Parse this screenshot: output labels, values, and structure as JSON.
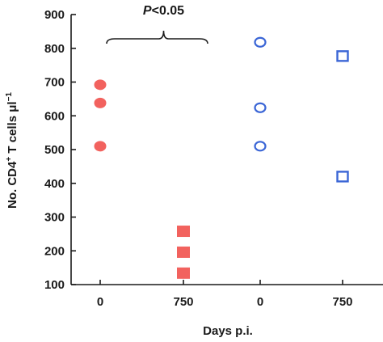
{
  "chart_data": {
    "type": "scatter",
    "xlabel": "Days p.i.",
    "ylabel_parts": {
      "main": "No. CD4",
      "sup1": "+",
      "mid": " T cells μl",
      "sup2": "−1"
    },
    "ylim": [
      100,
      900
    ],
    "yticks": [
      100,
      200,
      300,
      400,
      500,
      600,
      700,
      800,
      900
    ],
    "categories": [
      "0",
      "750",
      "0",
      "750"
    ],
    "series": [
      {
        "category_index": 0,
        "marker": "circle",
        "filled": true,
        "color": "#f2625e",
        "values": [
          692,
          638,
          510
        ]
      },
      {
        "category_index": 1,
        "marker": "square",
        "filled": true,
        "color": "#f2625e",
        "values": [
          258,
          196,
          134
        ]
      },
      {
        "category_index": 2,
        "marker": "circle",
        "filled": false,
        "color": "#3b66d6",
        "values": [
          818,
          624,
          510
        ]
      },
      {
        "category_index": 3,
        "marker": "square",
        "filled": false,
        "color": "#3b66d6",
        "values": [
          777,
          420
        ]
      }
    ],
    "annotation": {
      "italic_part": "P",
      "rest": "<0.05",
      "from_category": 0,
      "to_category": 1
    }
  }
}
